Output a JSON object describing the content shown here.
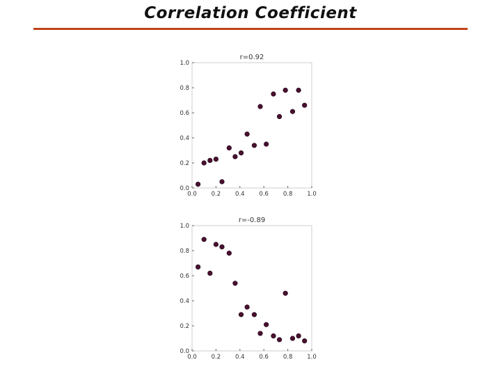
{
  "slide": {
    "title": "Correlation Coefficient",
    "rule_color": "#c0441c"
  },
  "chart_data": [
    {
      "type": "scatter",
      "title": "r=0.92",
      "xlim": [
        0.0,
        1.0
      ],
      "ylim": [
        0.0,
        1.0
      ],
      "xticks": [
        "0.0",
        "0.2",
        "0.4",
        "0.6",
        "0.8",
        "1.0"
      ],
      "yticks": [
        "0.0",
        "0.2",
        "0.4",
        "0.6",
        "0.8",
        "1.0"
      ],
      "grid": false,
      "marker_color": "#4a1030",
      "x": [
        0.05,
        0.1,
        0.15,
        0.2,
        0.25,
        0.31,
        0.36,
        0.41,
        0.46,
        0.52,
        0.57,
        0.62,
        0.68,
        0.73,
        0.78,
        0.84,
        0.89,
        0.94
      ],
      "y": [
        0.03,
        0.2,
        0.22,
        0.23,
        0.05,
        0.32,
        0.25,
        0.28,
        0.43,
        0.34,
        0.65,
        0.35,
        0.75,
        0.57,
        0.78,
        0.61,
        0.78,
        0.66
      ]
    },
    {
      "type": "scatter",
      "title": "r=-0.89",
      "xlim": [
        0.0,
        1.0
      ],
      "ylim": [
        0.0,
        1.0
      ],
      "xticks": [
        "0.0",
        "0.2",
        "0.4",
        "0.6",
        "0.8",
        "1.0"
      ],
      "yticks": [
        "0.0",
        "0.2",
        "0.4",
        "0.6",
        "0.8",
        "1.0"
      ],
      "grid": false,
      "marker_color": "#4a1030",
      "x": [
        0.05,
        0.1,
        0.15,
        0.2,
        0.25,
        0.31,
        0.36,
        0.41,
        0.46,
        0.52,
        0.57,
        0.62,
        0.68,
        0.73,
        0.78,
        0.84,
        0.89,
        0.94
      ],
      "y": [
        0.67,
        0.89,
        0.62,
        0.85,
        0.83,
        0.78,
        0.54,
        0.29,
        0.35,
        0.29,
        0.14,
        0.21,
        0.12,
        0.09,
        0.46,
        0.1,
        0.12,
        0.08
      ]
    }
  ]
}
